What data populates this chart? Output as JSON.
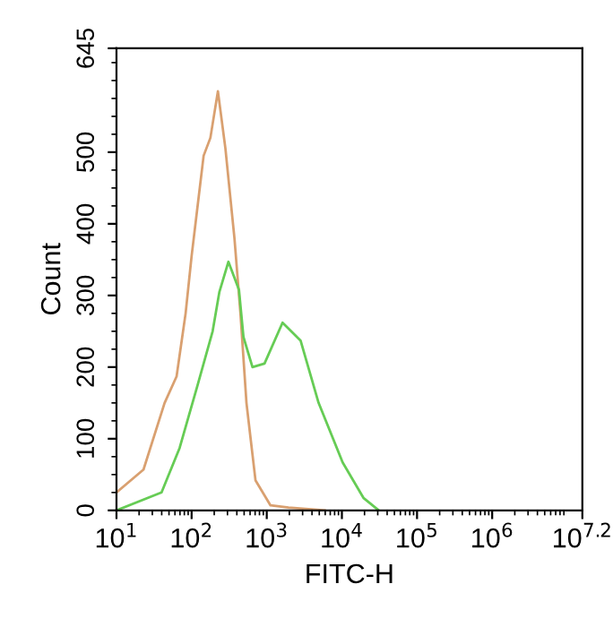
{
  "chart_data": {
    "type": "line",
    "xlabel": "FITC-H",
    "ylabel": "Count",
    "log": "x",
    "xlim": [
      10,
      15848932
    ],
    "xticks": [
      {
        "value": 10,
        "label": "10$^{1}$"
      },
      {
        "value": 100,
        "label": "10$^{2}$"
      },
      {
        "value": 1000,
        "label": "10$^{3}$"
      },
      {
        "value": 10000,
        "label": "10$^{4}$"
      },
      {
        "value": 100000,
        "label": "10$^{5}$"
      },
      {
        "value": 1000000,
        "label": "10$^{6}$"
      },
      {
        "value": 15848932,
        "label": "10$^{7.2}$"
      }
    ],
    "ylim": [
      0,
      645
    ],
    "yticks": [
      0,
      100,
      200,
      300,
      400,
      500,
      645
    ],
    "grid": false,
    "legend": false,
    "marker": "none",
    "line_style": "solid",
    "series": [
      {
        "color": "#d9a070",
        "x": [
          10,
          22.9,
          43.7,
          63.1,
          83.2,
          100,
          144.5,
          177.8,
          223.9,
          281.8,
          371.5,
          446.7,
          537.0,
          707.9,
          1122,
          1950,
          5888
        ],
        "values": [
          25,
          57,
          150,
          187,
          275,
          355,
          495,
          520,
          585,
          505,
          380,
          275,
          150,
          42,
          7,
          4,
          0
        ]
      },
      {
        "color": "#66cc55",
        "x": [
          10,
          39.8,
          69.2,
          120.2,
          190.5,
          234.4,
          309.0,
          426.6,
          489.8,
          645.7,
          933.3,
          1622,
          2818,
          4898,
          10230,
          19500,
          30900
        ],
        "values": [
          0,
          25,
          87,
          175,
          250,
          305,
          347,
          308,
          242,
          200,
          205,
          262,
          237,
          150,
          67,
          17,
          0
        ]
      }
    ]
  }
}
